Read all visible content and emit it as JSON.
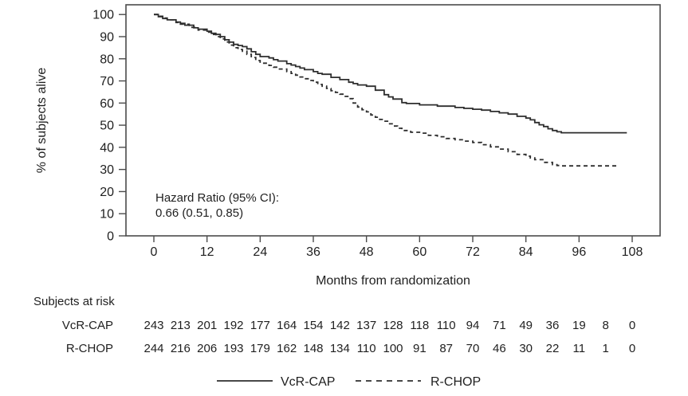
{
  "colors": {
    "line": "#2e2e2e",
    "frame": "#4b4b4b",
    "text": "#1f1f1f",
    "background": "#ffffff"
  },
  "chart_data": {
    "type": "line",
    "subtype": "kaplan-meier-step",
    "title": "",
    "xlabel": "Months from randomization",
    "ylabel": "% of subjects alive",
    "xlim": [
      0,
      108
    ],
    "ylim": [
      0,
      100
    ],
    "grid": false,
    "legend_position": "bottom",
    "x_ticks": [
      0,
      12,
      24,
      36,
      48,
      60,
      72,
      84,
      96,
      108
    ],
    "y_ticks": [
      0,
      10,
      20,
      30,
      40,
      50,
      60,
      70,
      80,
      90,
      100
    ],
    "annotation": {
      "line1": "Hazard Ratio (95% CI):",
      "line2": "0.66 (0.51, 0.85)"
    },
    "series": [
      {
        "name": "VcR-CAP",
        "style": "solid",
        "points": [
          [
            0,
            100
          ],
          [
            1,
            99
          ],
          [
            2,
            98.2
          ],
          [
            3,
            97.6
          ],
          [
            5,
            96.6
          ],
          [
            6,
            96
          ],
          [
            7,
            95.2
          ],
          [
            9,
            94
          ],
          [
            10,
            93.4
          ],
          [
            12,
            92.5
          ],
          [
            13,
            91.5
          ],
          [
            14,
            91
          ],
          [
            15,
            90
          ],
          [
            16,
            88.6
          ],
          [
            17,
            87.5
          ],
          [
            18,
            86.5
          ],
          [
            19,
            86
          ],
          [
            20,
            85.5
          ],
          [
            21,
            84.5
          ],
          [
            22,
            83.2
          ],
          [
            23,
            82
          ],
          [
            24,
            81
          ],
          [
            26,
            80.4
          ],
          [
            27,
            79.6
          ],
          [
            28,
            79
          ],
          [
            30,
            77.8
          ],
          [
            31,
            77.2
          ],
          [
            32,
            76.5
          ],
          [
            33,
            75.8
          ],
          [
            34,
            75.1
          ],
          [
            36,
            74.2
          ],
          [
            37,
            73.4
          ],
          [
            38,
            73
          ],
          [
            40,
            71.6
          ],
          [
            42,
            70.6
          ],
          [
            44,
            69.4
          ],
          [
            45,
            68.8
          ],
          [
            46,
            68.2
          ],
          [
            48,
            67.6
          ],
          [
            50,
            65.8
          ],
          [
            52,
            63.8
          ],
          [
            53,
            62.8
          ],
          [
            54,
            61.8
          ],
          [
            56,
            60.2
          ],
          [
            57,
            59.8
          ],
          [
            60,
            59.2
          ],
          [
            64,
            58.6
          ],
          [
            68,
            58
          ],
          [
            70,
            57.6
          ],
          [
            72,
            57.2
          ],
          [
            74,
            56.8
          ],
          [
            76,
            56.2
          ],
          [
            78,
            55.6
          ],
          [
            80,
            55
          ],
          [
            82,
            54
          ],
          [
            84,
            53.2
          ],
          [
            85,
            52.4
          ],
          [
            86,
            51.2
          ],
          [
            87,
            50.2
          ],
          [
            88,
            49.4
          ],
          [
            89,
            48.4
          ],
          [
            90,
            47.6
          ],
          [
            91,
            47
          ],
          [
            92,
            46.6
          ],
          [
            106.8,
            46.6
          ]
        ]
      },
      {
        "name": "R-CHOP",
        "style": "dashed",
        "points": [
          [
            0,
            100
          ],
          [
            1,
            99.2
          ],
          [
            2,
            98.4
          ],
          [
            3,
            97.6
          ],
          [
            5,
            96.4
          ],
          [
            6,
            95.6
          ],
          [
            8,
            94.2
          ],
          [
            10,
            93
          ],
          [
            12,
            92
          ],
          [
            13,
            91
          ],
          [
            14,
            90
          ],
          [
            15,
            89
          ],
          [
            16,
            87.6
          ],
          [
            17,
            86.2
          ],
          [
            18,
            85
          ],
          [
            19,
            84.2
          ],
          [
            20,
            83.4
          ],
          [
            21,
            82
          ],
          [
            22,
            80.6
          ],
          [
            23,
            79.2
          ],
          [
            24,
            78
          ],
          [
            26,
            77
          ],
          [
            27,
            76.2
          ],
          [
            28,
            75.4
          ],
          [
            30,
            74.2
          ],
          [
            31,
            73.4
          ],
          [
            32,
            72.6
          ],
          [
            33,
            71.8
          ],
          [
            34,
            71
          ],
          [
            35,
            70.2
          ],
          [
            36,
            69.4
          ],
          [
            37,
            68.4
          ],
          [
            38,
            67.6
          ],
          [
            39,
            66.6
          ],
          [
            40,
            65.6
          ],
          [
            41,
            64.8
          ],
          [
            42,
            64
          ],
          [
            43,
            63
          ],
          [
            44,
            62
          ],
          [
            45,
            60
          ],
          [
            46,
            58.2
          ],
          [
            47,
            57
          ],
          [
            48,
            56
          ],
          [
            49,
            54.6
          ],
          [
            50,
            53.6
          ],
          [
            51,
            52.6
          ],
          [
            52,
            51.8
          ],
          [
            53,
            50.6
          ],
          [
            54,
            49.6
          ],
          [
            55,
            48.6
          ],
          [
            56,
            47.6
          ],
          [
            58,
            46.8
          ],
          [
            60,
            46.4
          ],
          [
            62,
            45.4
          ],
          [
            64,
            44.8
          ],
          [
            66,
            44
          ],
          [
            68,
            43.4
          ],
          [
            70,
            42.8
          ],
          [
            72,
            42.2
          ],
          [
            74,
            41.2
          ],
          [
            76,
            40.2
          ],
          [
            78,
            39.2
          ],
          [
            80,
            38
          ],
          [
            82,
            36.8
          ],
          [
            84,
            36
          ],
          [
            85,
            35.2
          ],
          [
            86,
            34.4
          ],
          [
            88,
            33.2
          ],
          [
            90,
            32.2
          ],
          [
            91,
            31.8
          ],
          [
            92,
            31.6
          ],
          [
            104.4,
            31.6
          ]
        ]
      }
    ],
    "at_risk": {
      "header": "Subjects at risk",
      "months": [
        0,
        6,
        12,
        18,
        24,
        30,
        36,
        42,
        48,
        54,
        60,
        66,
        72,
        78,
        84,
        90,
        96,
        102,
        108
      ],
      "rows": [
        {
          "label": "VcR-CAP",
          "values": [
            243,
            213,
            201,
            192,
            177,
            164,
            154,
            142,
            137,
            128,
            118,
            110,
            94,
            71,
            49,
            36,
            19,
            8,
            0
          ]
        },
        {
          "label": "R-CHOP",
          "values": [
            244,
            216,
            206,
            193,
            179,
            162,
            148,
            134,
            110,
            100,
            91,
            87,
            70,
            46,
            30,
            22,
            11,
            1,
            0
          ]
        }
      ]
    }
  }
}
